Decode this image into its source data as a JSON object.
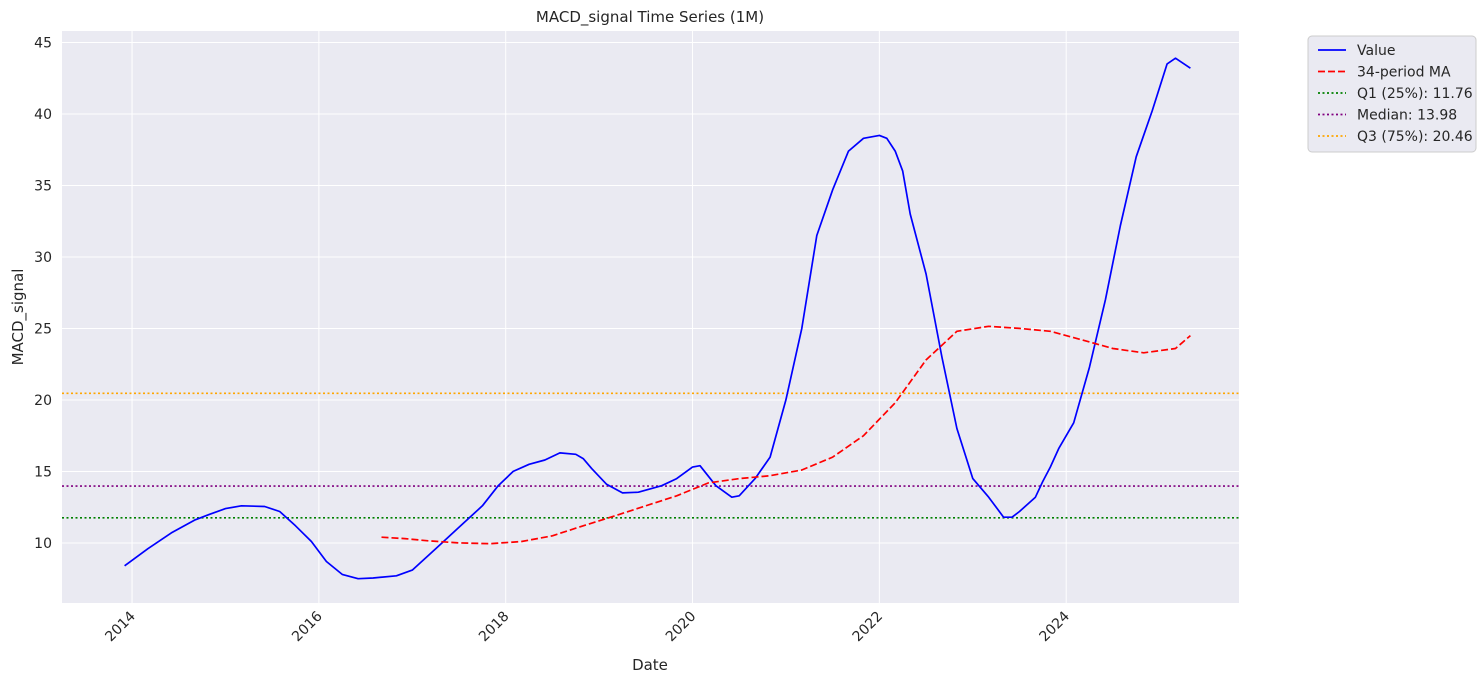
{
  "chart_data": {
    "type": "line",
    "title": "MACD_signal Time Series (1M)",
    "xlabel": "Date",
    "ylabel": "MACD_signal",
    "xlim": [
      2013.25,
      2025.85
    ],
    "ylim": [
      5.8,
      45.8
    ],
    "x_ticks": [
      2014,
      2016,
      2018,
      2020,
      2022,
      2024
    ],
    "x_tick_labels": [
      "2014",
      "2016",
      "2018",
      "2020",
      "2022",
      "2024"
    ],
    "y_ticks": [
      10,
      15,
      20,
      25,
      30,
      35,
      40,
      45
    ],
    "y_tick_labels": [
      "10",
      "15",
      "20",
      "25",
      "30",
      "35",
      "40",
      "45"
    ],
    "grid": true,
    "legend_position": "outside-top-right",
    "series": [
      {
        "name": "Value",
        "color": "#0000ff",
        "style": "solid",
        "x": [
          2013.92,
          2014.17,
          2014.42,
          2014.67,
          2014.83,
          2015.0,
          2015.17,
          2015.42,
          2015.58,
          2015.75,
          2015.92,
          2016.08,
          2016.25,
          2016.42,
          2016.58,
          2016.83,
          2017.0,
          2017.25,
          2017.5,
          2017.75,
          2017.92,
          2018.08,
          2018.25,
          2018.42,
          2018.58,
          2018.75,
          2018.83,
          2018.92,
          2019.08,
          2019.25,
          2019.42,
          2019.67,
          2019.83,
          2020.0,
          2020.08,
          2020.25,
          2020.42,
          2020.5,
          2020.67,
          2020.83,
          2021.0,
          2021.17,
          2021.33,
          2021.5,
          2021.67,
          2021.83,
          2022.0,
          2022.08,
          2022.17,
          2022.25,
          2022.33,
          2022.5,
          2022.67,
          2022.83,
          2023.0,
          2023.17,
          2023.33,
          2023.42,
          2023.5,
          2023.67,
          2023.75,
          2023.83,
          2023.92,
          2024.08,
          2024.25,
          2024.42,
          2024.58,
          2024.75,
          2024.92,
          2025.08,
          2025.17,
          2025.33
        ],
        "values": [
          8.4,
          9.6,
          10.7,
          11.6,
          12.0,
          12.4,
          12.6,
          12.55,
          12.2,
          11.2,
          10.1,
          8.7,
          7.8,
          7.5,
          7.55,
          7.7,
          8.1,
          9.6,
          11.1,
          12.6,
          14.0,
          15.0,
          15.5,
          15.8,
          16.3,
          16.2,
          15.9,
          15.2,
          14.1,
          13.5,
          13.55,
          14.0,
          14.5,
          15.3,
          15.4,
          14.0,
          13.2,
          13.3,
          14.5,
          16.0,
          20.0,
          25.0,
          31.5,
          34.7,
          37.4,
          38.3,
          38.5,
          38.3,
          37.4,
          36.0,
          33.0,
          28.8,
          23.0,
          18.0,
          14.5,
          13.2,
          11.8,
          11.8,
          12.2,
          13.2,
          14.3,
          15.3,
          16.6,
          18.4,
          22.3,
          27.0,
          32.2,
          37.0,
          40.2,
          43.5,
          43.9,
          43.2
        ]
      },
      {
        "name": "34-period MA",
        "color": "#ff0000",
        "style": "dashed",
        "x": [
          2016.67,
          2016.92,
          2017.17,
          2017.5,
          2017.83,
          2018.17,
          2018.5,
          2018.83,
          2019.17,
          2019.5,
          2019.83,
          2020.17,
          2020.5,
          2020.83,
          2021.17,
          2021.5,
          2021.83,
          2022.17,
          2022.5,
          2022.83,
          2023.17,
          2023.5,
          2023.83,
          2024.17,
          2024.5,
          2024.83,
          2025.17,
          2025.33
        ],
        "values": [
          10.4,
          10.3,
          10.15,
          10.0,
          9.95,
          10.1,
          10.5,
          11.2,
          11.9,
          12.6,
          13.3,
          14.2,
          14.5,
          14.7,
          15.1,
          16.0,
          17.5,
          19.8,
          22.8,
          24.8,
          25.15,
          25.0,
          24.8,
          24.2,
          23.6,
          23.3,
          23.6,
          24.5
        ]
      }
    ],
    "reference_lines": [
      {
        "name": "Q1 (25%): 11.76",
        "value": 11.76,
        "color": "#008000",
        "style": "dotted"
      },
      {
        "name": "Median: 13.98",
        "value": 13.98,
        "color": "#800080",
        "style": "dotted"
      },
      {
        "name": "Q3 (75%): 20.46",
        "value": 20.46,
        "color": "#ffa500",
        "style": "dotted"
      }
    ]
  }
}
